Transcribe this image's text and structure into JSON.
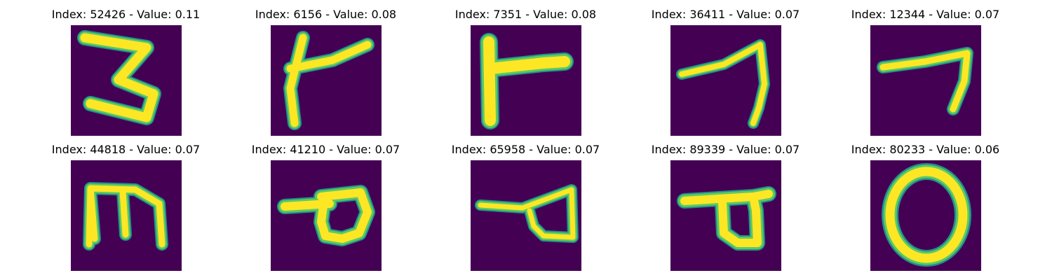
{
  "colors": {
    "background": "#440154",
    "stroke_outer": "#21918c",
    "stroke_mid": "#5ec962",
    "stroke_core": "#fde725"
  },
  "panels": [
    {
      "title": "Index: 52426 - Value: 0.11",
      "glyph": "three-shape-icon"
    },
    {
      "title": "Index: 6156 - Value: 0.08",
      "glyph": "slanted-cross-shape-icon"
    },
    {
      "title": "Index: 7351 - Value: 0.08",
      "glyph": "r-shape-icon"
    },
    {
      "title": "Index: 36411 - Value: 0.07",
      "glyph": "seven-shape-icon"
    },
    {
      "title": "Index: 12344 - Value: 0.07",
      "glyph": "hook-shape-icon"
    },
    {
      "title": "Index: 44818 - Value: 0.07",
      "glyph": "m-shape-icon"
    },
    {
      "title": "Index: 41210 - Value: 0.07",
      "glyph": "loop-shape-icon"
    },
    {
      "title": "Index: 65958 - Value: 0.07",
      "glyph": "triangle-loop-shape-icon"
    },
    {
      "title": "Index: 89339 - Value: 0.07",
      "glyph": "d-shape-icon"
    },
    {
      "title": "Index: 80233 - Value: 0.06",
      "glyph": "zero-shape-icon"
    }
  ]
}
